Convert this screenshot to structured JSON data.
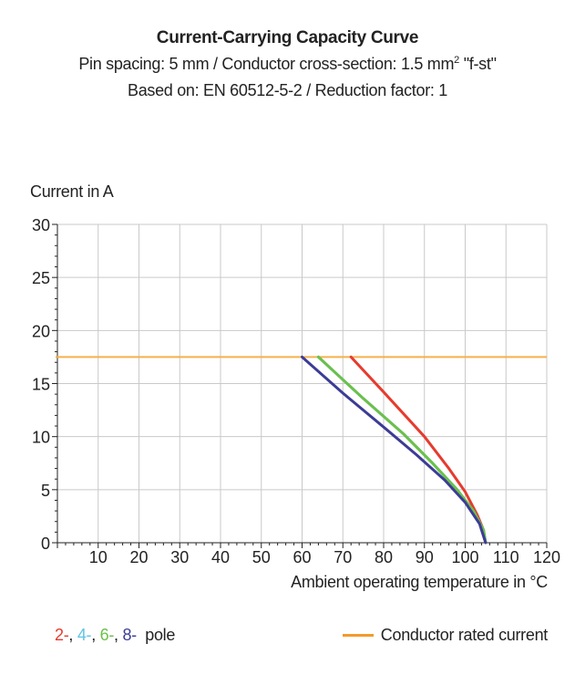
{
  "title": "Current-Carrying Capacity Curve",
  "subtitle_line1_before": "Pin spacing: 5 mm / Conductor cross-section: 1.5 mm",
  "subtitle_line1_sup": "2",
  "subtitle_line1_after": " \"f-st\"",
  "subtitle_line2": "Based on: EN 60512-5-2 / Reduction factor: 1",
  "colors": {
    "red": "#e63b2e",
    "cyan": "#5fc3e4",
    "green": "#6cc04a",
    "blue": "#3c3c96",
    "rated": "#f5b04a",
    "legend_rated": "#f39a2b",
    "grid": "#c9c9c9",
    "axis": "#222222"
  },
  "legend": {
    "poles": [
      {
        "text": "2-",
        "color": "#e63b2e"
      },
      {
        "text": ", ",
        "color": "#222222"
      },
      {
        "text": "4-",
        "color": "#5fc3e4"
      },
      {
        "text": ", ",
        "color": "#222222"
      },
      {
        "text": "6-",
        "color": "#6cc04a"
      },
      {
        "text": ", ",
        "color": "#222222"
      },
      {
        "text": "8-",
        "color": "#3c3c96"
      }
    ],
    "pole_suffix": "  pole",
    "rated_label": "Conductor rated current"
  },
  "chart_data": {
    "type": "line",
    "title": "Current-Carrying Capacity Curve",
    "xlabel": "Ambient operating temperature in °C",
    "ylabel": "Current in A",
    "xlim": [
      0,
      120
    ],
    "ylim": [
      0,
      30
    ],
    "xticks": [
      10,
      20,
      30,
      40,
      50,
      60,
      70,
      80,
      90,
      100,
      110,
      120
    ],
    "yticks": [
      0,
      5,
      10,
      15,
      20,
      25,
      30
    ],
    "grid": true,
    "rated_current": 17.5,
    "series": [
      {
        "name": "2-",
        "color": "#e63b2e",
        "points": [
          [
            72,
            17.5
          ],
          [
            80,
            14.2
          ],
          [
            90,
            10.0
          ],
          [
            96,
            7.0
          ],
          [
            100,
            4.8
          ],
          [
            103,
            2.6
          ],
          [
            104.5,
            1.2
          ],
          [
            105,
            0
          ]
        ]
      },
      {
        "name": "4-",
        "color": "#5fc3e4",
        "points": [
          [
            64,
            17.5
          ],
          [
            75,
            13.6
          ],
          [
            85,
            10.2
          ],
          [
            92,
            7.5
          ],
          [
            98,
            5.0
          ],
          [
            102,
            3.0
          ],
          [
            104.5,
            1.2
          ],
          [
            105,
            0
          ]
        ]
      },
      {
        "name": "6-",
        "color": "#6cc04a",
        "points": [
          [
            64,
            17.5
          ],
          [
            75,
            13.6
          ],
          [
            85,
            10.2
          ],
          [
            92,
            7.5
          ],
          [
            98,
            5.0
          ],
          [
            102,
            3.0
          ],
          [
            104.5,
            1.2
          ],
          [
            105,
            0
          ]
        ]
      },
      {
        "name": "8-",
        "color": "#3c3c96",
        "points": [
          [
            60,
            17.5
          ],
          [
            70,
            14.1
          ],
          [
            80,
            10.9
          ],
          [
            88,
            8.3
          ],
          [
            95,
            5.9
          ],
          [
            100,
            3.8
          ],
          [
            103.5,
            1.8
          ],
          [
            105,
            0
          ]
        ]
      }
    ]
  }
}
